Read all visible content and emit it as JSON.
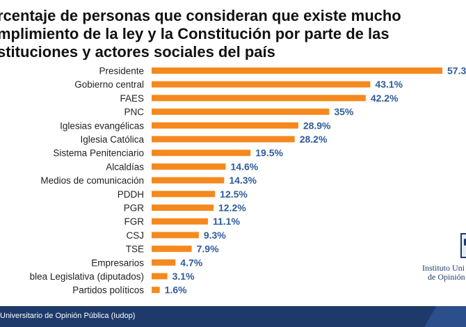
{
  "title": {
    "line1": "rcentaje de personas que consideran que existe mucho",
    "line2": "mplimiento de la ley y la Constitución por parte de las",
    "line3": "stituciones y actores sociales del país"
  },
  "colors": {
    "bar": "#f5891d",
    "value_label": "#2e5c9a",
    "category_label": "#222222",
    "footer": "#1d3a6a"
  },
  "chart_data": {
    "type": "bar",
    "orientation": "horizontal",
    "categories": [
      "Presidente",
      "Gobierno central",
      "FAES",
      "PNC",
      "Iglesias evangélicas",
      "Iglesia Católica",
      "Sistema Penitenciario",
      "Alcaldías",
      "Medios de comunicación",
      "PDDH",
      "PGR",
      "FGR",
      "CSJ",
      "TSE",
      "Empresarios",
      "blea Legislativa (diputados)",
      "Partidos políticos"
    ],
    "values": [
      57.3,
      43.1,
      42.2,
      35,
      28.9,
      28.2,
      19.5,
      14.6,
      14.3,
      12.5,
      12.2,
      11.1,
      9.3,
      7.9,
      4.7,
      3.1,
      1.6
    ],
    "value_labels": [
      "57.3",
      "43.1%",
      "42.2%",
      "35%",
      "28.9%",
      "28.2%",
      "19.5%",
      "14.6%",
      "14.3%",
      "12.5%",
      "12.2%",
      "11.1%",
      "9.3%",
      "7.9%",
      "4.7%",
      "3.1%",
      "1.6%"
    ],
    "xlim": [
      0,
      57.3
    ],
    "grid": false,
    "legend": "none"
  },
  "logo": {
    "line1": "Instituto Uni",
    "line2": "de Opinión"
  },
  "footer": {
    "text": "Universitario de Opinión Pública (Iudop)"
  }
}
